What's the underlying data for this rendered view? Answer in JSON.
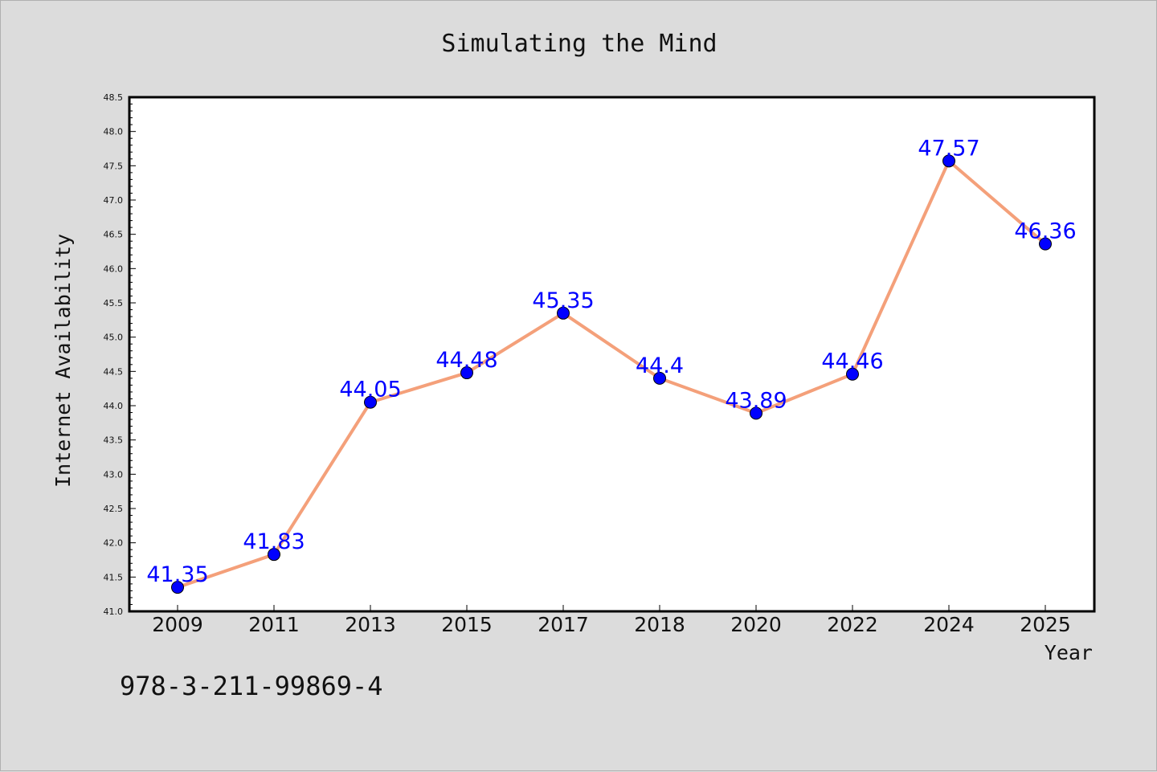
{
  "figure": {
    "isbn": "978-3-211-99869-4"
  },
  "chart_data": {
    "type": "line",
    "title": "Simulating the Mind",
    "xlabel": "Year",
    "ylabel": "Internet Availability",
    "categories": [
      "2009",
      "2011",
      "2013",
      "2015",
      "2017",
      "2018",
      "2020",
      "2022",
      "2024",
      "2025"
    ],
    "series": [
      {
        "values": [
          41.35,
          41.83,
          44.05,
          44.48,
          45.35,
          44.4,
          43.89,
          44.46,
          47.57,
          46.36
        ],
        "line_color": "#f4a07a",
        "marker_color": "#0000ff"
      }
    ],
    "data_labels": [
      "41.35",
      "41.83",
      "44.05",
      "44.48",
      "45.35",
      "44.4",
      "43.89",
      "44.46",
      "47.57",
      "46.36"
    ],
    "ylim": [
      41.0,
      48.5
    ],
    "y_ticks": [
      "41.0",
      "41.5",
      "42.0",
      "42.5",
      "43.0",
      "43.5",
      "44.0",
      "44.5",
      "45.0",
      "45.5",
      "46.0",
      "46.5",
      "47.0",
      "47.5",
      "48.0",
      "48.5"
    ],
    "grid": false,
    "legend": "none"
  }
}
